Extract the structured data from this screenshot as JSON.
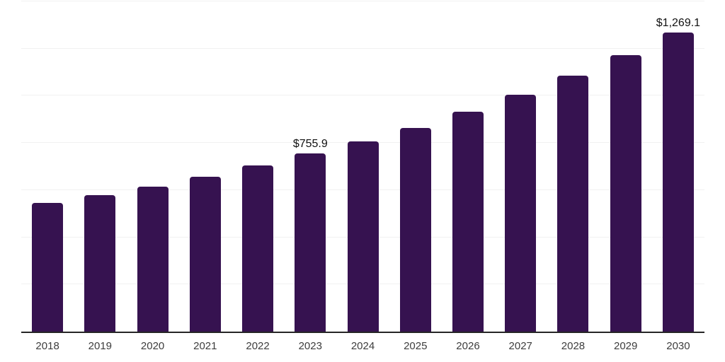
{
  "chart_data": {
    "type": "bar",
    "title": "",
    "xlabel": "",
    "ylabel": "",
    "categories": [
      "2018",
      "2019",
      "2020",
      "2021",
      "2022",
      "2023",
      "2024",
      "2025",
      "2026",
      "2027",
      "2028",
      "2029",
      "2030"
    ],
    "values": [
      547.0,
      578.0,
      615.0,
      658.0,
      705.0,
      755.9,
      807.0,
      864.0,
      932.0,
      1004.0,
      1084.0,
      1172.0,
      1269.1
    ],
    "data_labels": {
      "2023": "$755.9",
      "2030": "$1,269.1"
    },
    "ylim": [
      0,
      1400
    ],
    "gridline_step": 200,
    "grid": true,
    "legend": false,
    "colors": {
      "bar": "#361250",
      "gridline": "#f1f1f1",
      "axis": "#262626",
      "tick_label": "#3d3d3d",
      "data_label": "#111111",
      "background": "#ffffff"
    }
  }
}
